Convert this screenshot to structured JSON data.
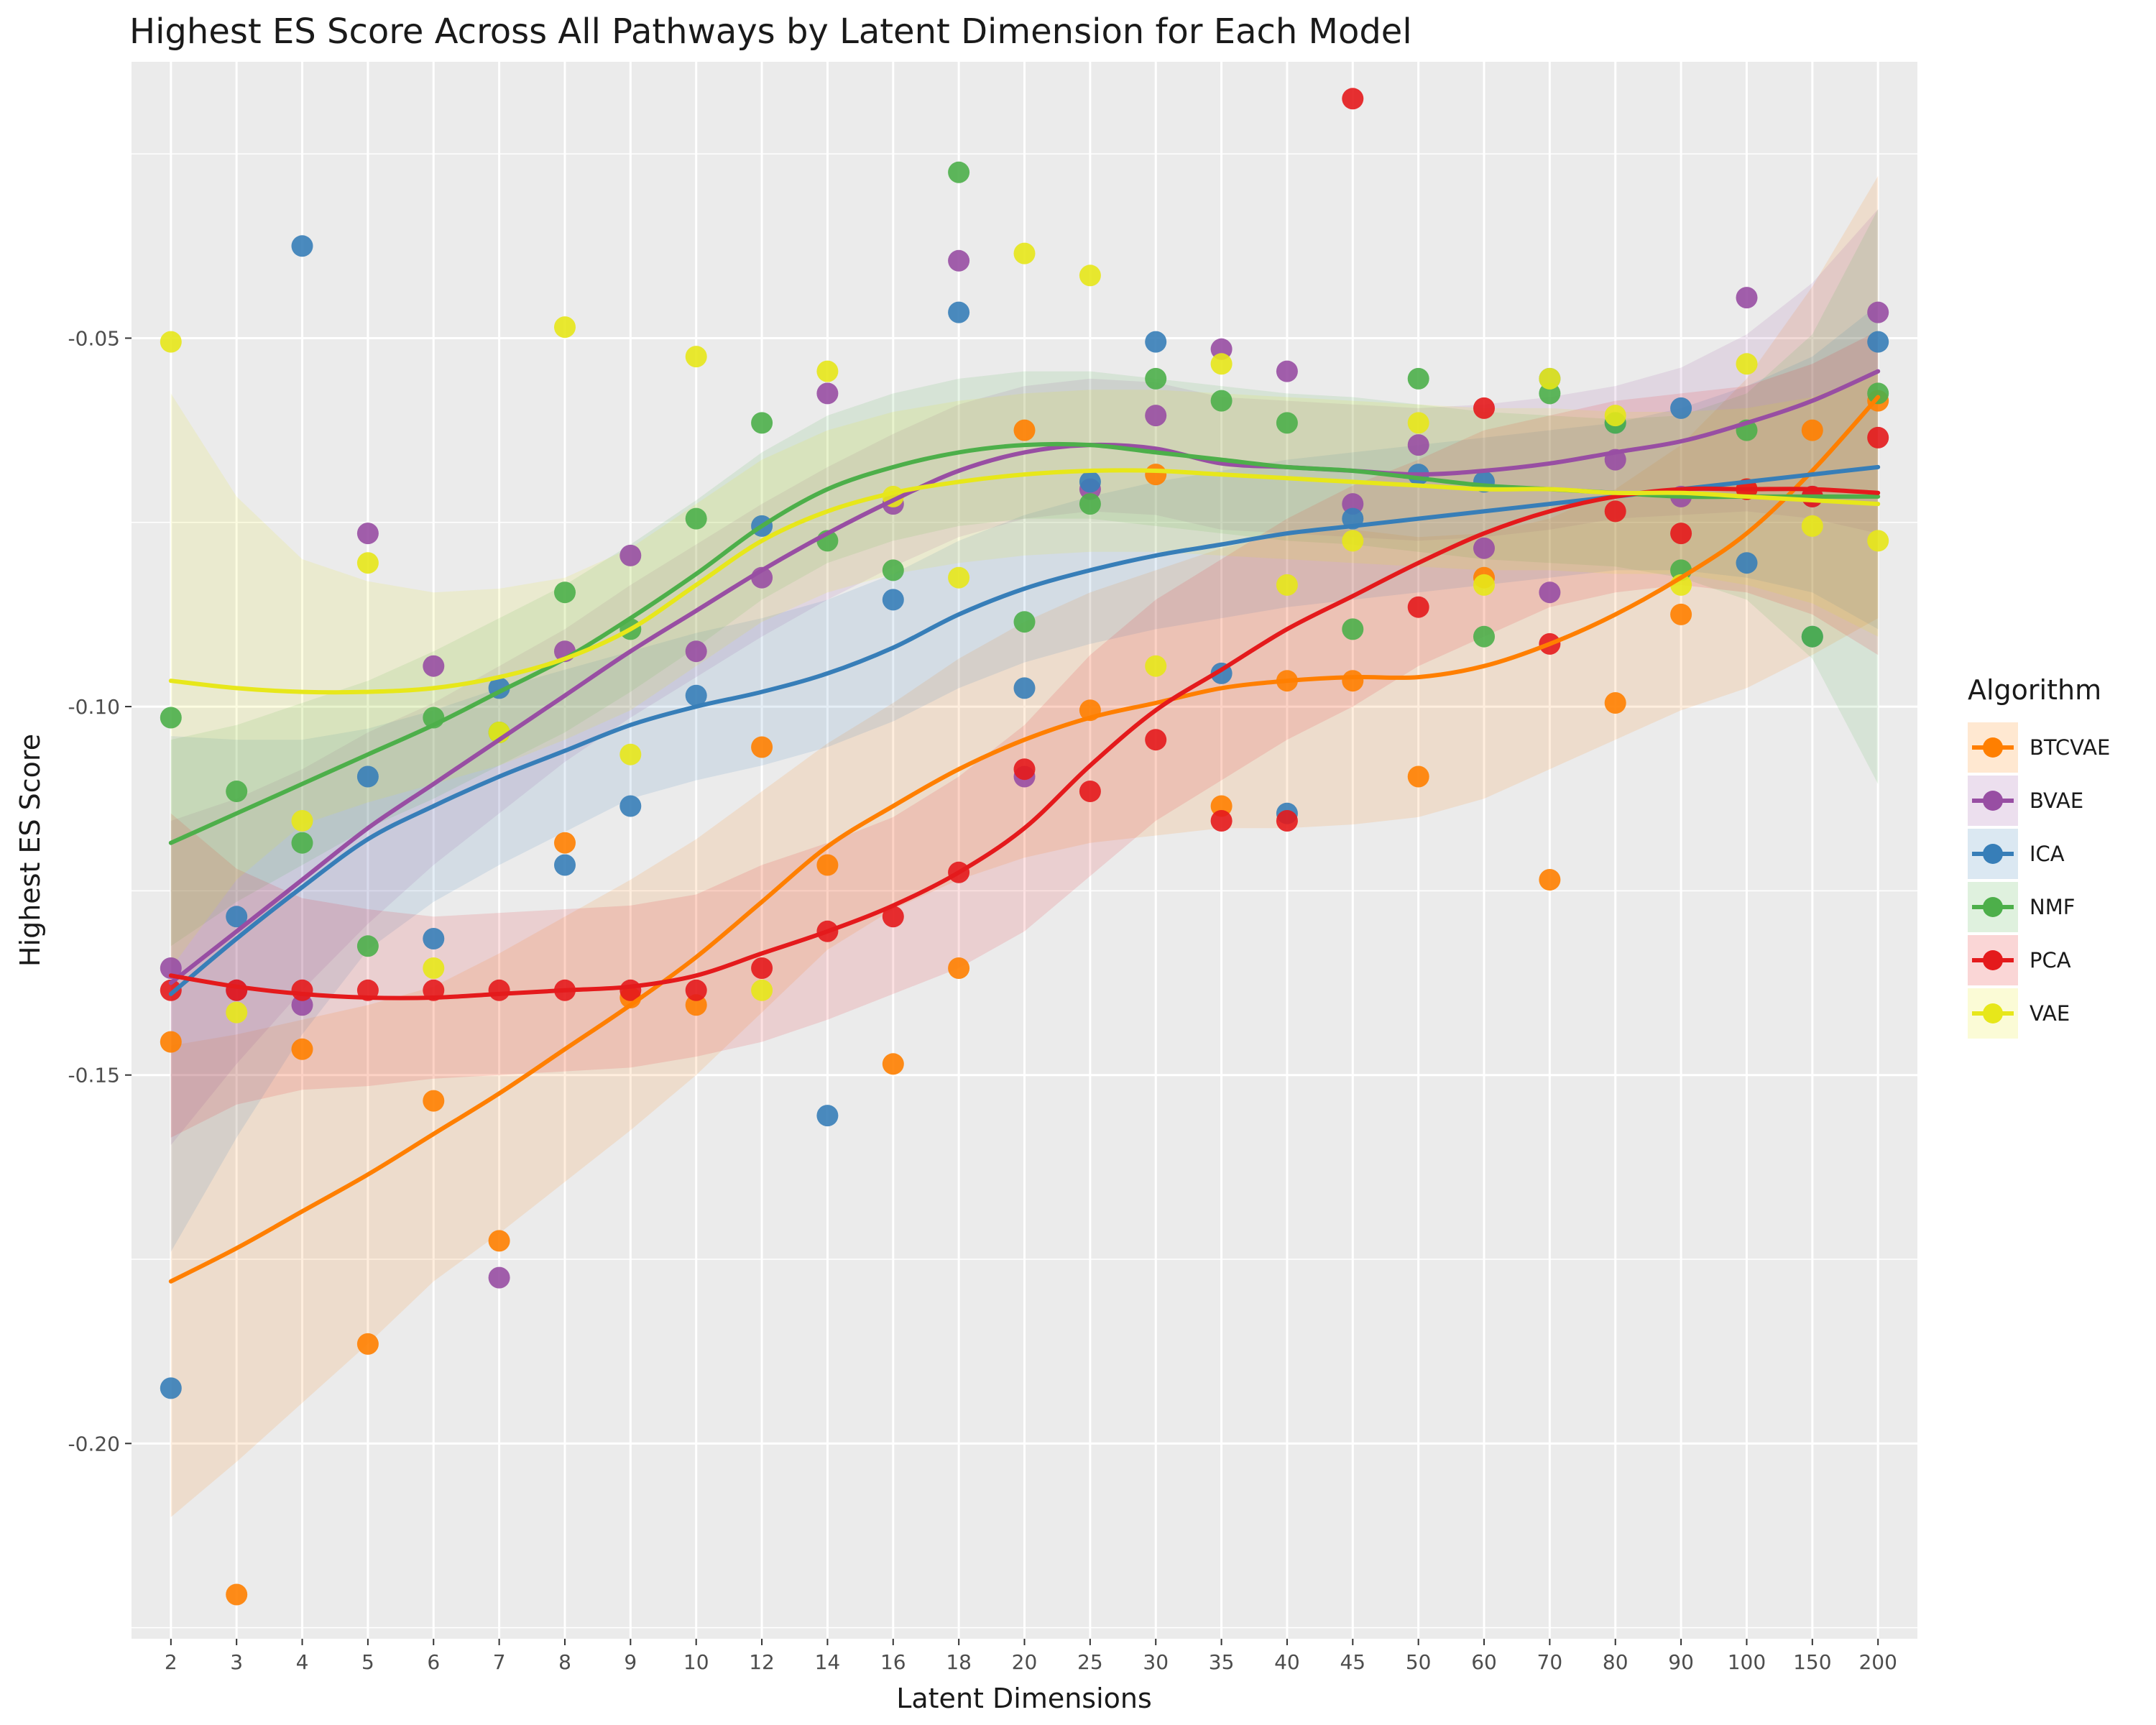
{
  "chart_data": {
    "type": "scatter",
    "title": "Highest ES Score Across All Pathways by Latent Dimension for Each Model",
    "xlabel": "Latent Dimensions",
    "ylabel": "Highest ES Score",
    "categories": [
      "2",
      "3",
      "4",
      "5",
      "6",
      "7",
      "8",
      "9",
      "10",
      "12",
      "14",
      "16",
      "18",
      "20",
      "25",
      "30",
      "35",
      "40",
      "45",
      "50",
      "60",
      "70",
      "80",
      "90",
      "100",
      "150",
      "200"
    ],
    "y_ticks": [
      -0.2,
      -0.15,
      -0.1,
      -0.05
    ],
    "y_tick_labels": [
      "-0.20",
      "-0.15",
      "-0.10",
      "-0.05"
    ],
    "ylim": [
      -0.2265,
      -0.0125
    ],
    "grid": true,
    "legend": {
      "title": "Algorithm",
      "position": "right"
    },
    "series": [
      {
        "name": "BTCVAE",
        "color": "#ff7f00",
        "points": [
          [
            0,
            -0.1455
          ],
          [
            1,
            -0.2205
          ],
          [
            2,
            -0.1465
          ],
          [
            3,
            -0.1865
          ],
          [
            4,
            -0.1535
          ],
          [
            5,
            -0.1725
          ],
          [
            6,
            -0.1185
          ],
          [
            7,
            -0.1395
          ],
          [
            8,
            -0.1405
          ],
          [
            9,
            -0.1055
          ],
          [
            10,
            -0.1215
          ],
          [
            11,
            -0.1485
          ],
          [
            12,
            -0.1355
          ],
          [
            13,
            -0.0625
          ],
          [
            14,
            -0.1005
          ],
          [
            15,
            -0.0685
          ],
          [
            16,
            -0.1135
          ],
          [
            17,
            -0.0965
          ],
          [
            18,
            -0.0965
          ],
          [
            19,
            -0.1095
          ],
          [
            20,
            -0.0825
          ],
          [
            21,
            -0.1235
          ],
          [
            22,
            -0.0995
          ],
          [
            23,
            -0.0875
          ],
          [
            24,
            -0.0705
          ],
          [
            25,
            -0.0625
          ],
          [
            26,
            -0.0585
          ]
        ],
        "trend": [
          -0.178,
          -0.1735,
          -0.1685,
          -0.1635,
          -0.158,
          -0.1525,
          -0.1465,
          -0.1405,
          -0.134,
          -0.1265,
          -0.119,
          -0.1135,
          -0.1085,
          -0.1045,
          -0.1015,
          -0.0995,
          -0.0975,
          -0.0965,
          -0.096,
          -0.096,
          -0.0945,
          -0.0915,
          -0.0875,
          -0.0825,
          -0.0765,
          -0.068,
          -0.058
        ],
        "band": [
          0.032,
          0.029,
          0.026,
          0.023,
          0.02,
          0.019,
          0.018,
          0.017,
          0.016,
          0.015,
          0.014,
          0.014,
          0.015,
          0.016,
          0.017,
          0.018,
          0.019,
          0.02,
          0.02,
          0.019,
          0.018,
          0.017,
          0.017,
          0.018,
          0.021,
          0.025,
          0.03
        ]
      },
      {
        "name": "BVAE",
        "color": "#984ea3",
        "points": [
          [
            0,
            -0.1355
          ],
          [
            1,
            -0.1385
          ],
          [
            2,
            -0.1405
          ],
          [
            3,
            -0.0765
          ],
          [
            4,
            -0.0945
          ],
          [
            5,
            -0.1775
          ],
          [
            6,
            -0.0925
          ],
          [
            7,
            -0.0795
          ],
          [
            8,
            -0.0925
          ],
          [
            9,
            -0.0825
          ],
          [
            10,
            -0.0575
          ],
          [
            11,
            -0.0725
          ],
          [
            12,
            -0.0395
          ],
          [
            13,
            -0.1095
          ],
          [
            14,
            -0.0705
          ],
          [
            15,
            -0.0605
          ],
          [
            16,
            -0.0515
          ],
          [
            17,
            -0.0545
          ],
          [
            18,
            -0.0725
          ],
          [
            19,
            -0.0645
          ],
          [
            20,
            -0.0785
          ],
          [
            21,
            -0.0845
          ],
          [
            22,
            -0.0665
          ],
          [
            23,
            -0.0715
          ],
          [
            24,
            -0.0445
          ],
          [
            25,
            -0.0715
          ],
          [
            26,
            -0.0465
          ]
        ],
        "trend": [
          -0.1375,
          -0.1305,
          -0.1235,
          -0.1165,
          -0.1105,
          -0.1045,
          -0.0985,
          -0.0925,
          -0.087,
          -0.0815,
          -0.0765,
          -0.072,
          -0.068,
          -0.0655,
          -0.0645,
          -0.065,
          -0.067,
          -0.0675,
          -0.068,
          -0.0685,
          -0.068,
          -0.067,
          -0.0655,
          -0.064,
          -0.0615,
          -0.0585,
          -0.0545
        ],
        "band": [
          0.022,
          0.018,
          0.015,
          0.013,
          0.011,
          0.01,
          0.009,
          0.009,
          0.009,
          0.009,
          0.009,
          0.009,
          0.009,
          0.009,
          0.009,
          0.009,
          0.009,
          0.009,
          0.009,
          0.009,
          0.009,
          0.009,
          0.009,
          0.01,
          0.012,
          0.016,
          0.022
        ]
      },
      {
        "name": "ICA",
        "color": "#377eb8",
        "points": [
          [
            0,
            -0.1925
          ],
          [
            1,
            -0.1285
          ],
          [
            2,
            -0.0375
          ],
          [
            3,
            -0.1095
          ],
          [
            4,
            -0.1315
          ],
          [
            5,
            -0.0975
          ],
          [
            6,
            -0.1215
          ],
          [
            7,
            -0.1135
          ],
          [
            8,
            -0.0985
          ],
          [
            9,
            -0.0755
          ],
          [
            10,
            -0.1555
          ],
          [
            11,
            -0.0855
          ],
          [
            12,
            -0.0465
          ],
          [
            13,
            -0.0975
          ],
          [
            14,
            -0.0695
          ],
          [
            15,
            -0.0505
          ],
          [
            16,
            -0.0955
          ],
          [
            17,
            -0.1145
          ],
          [
            18,
            -0.0745
          ],
          [
            19,
            -0.0685
          ],
          [
            20,
            -0.0695
          ],
          [
            21,
            -0.0555
          ],
          [
            22,
            -0.0615
          ],
          [
            23,
            -0.0595
          ],
          [
            24,
            -0.0805
          ],
          [
            25,
            -0.0905
          ],
          [
            26,
            -0.0505
          ]
        ],
        "trend": [
          -0.139,
          -0.1315,
          -0.1245,
          -0.118,
          -0.1135,
          -0.1095,
          -0.106,
          -0.1025,
          -0.1,
          -0.098,
          -0.0955,
          -0.092,
          -0.0875,
          -0.084,
          -0.0815,
          -0.0795,
          -0.078,
          -0.0765,
          -0.0755,
          -0.0745,
          -0.0735,
          -0.0725,
          -0.0715,
          -0.0705,
          -0.0695,
          -0.0685,
          -0.0675
        ],
        "band": [
          0.035,
          0.027,
          0.02,
          0.015,
          0.013,
          0.012,
          0.011,
          0.01,
          0.01,
          0.01,
          0.01,
          0.01,
          0.01,
          0.01,
          0.01,
          0.01,
          0.01,
          0.01,
          0.01,
          0.01,
          0.01,
          0.01,
          0.01,
          0.011,
          0.013,
          0.016,
          0.022
        ]
      },
      {
        "name": "NMF",
        "color": "#4daf4a",
        "points": [
          [
            0,
            -0.1015
          ],
          [
            1,
            -0.1115
          ],
          [
            2,
            -0.1185
          ],
          [
            3,
            -0.1325
          ],
          [
            4,
            -0.1015
          ],
          [
            5,
            -0.1035
          ],
          [
            6,
            -0.0845
          ],
          [
            7,
            -0.0895
          ],
          [
            8,
            -0.0745
          ],
          [
            9,
            -0.0615
          ],
          [
            10,
            -0.0775
          ],
          [
            11,
            -0.0815
          ],
          [
            12,
            -0.0275
          ],
          [
            13,
            -0.0885
          ],
          [
            14,
            -0.0725
          ],
          [
            15,
            -0.0555
          ],
          [
            16,
            -0.0585
          ],
          [
            17,
            -0.0615
          ],
          [
            18,
            -0.0895
          ],
          [
            19,
            -0.0555
          ],
          [
            20,
            -0.0905
          ],
          [
            21,
            -0.0575
          ],
          [
            22,
            -0.0615
          ],
          [
            23,
            -0.0815
          ],
          [
            24,
            -0.0625
          ],
          [
            25,
            -0.0905
          ],
          [
            26,
            -0.0575
          ]
        ],
        "trend": [
          -0.1185,
          -0.1145,
          -0.1105,
          -0.1065,
          -0.1025,
          -0.098,
          -0.0935,
          -0.088,
          -0.082,
          -0.0755,
          -0.0705,
          -0.0675,
          -0.0655,
          -0.0645,
          -0.0645,
          -0.0655,
          -0.0665,
          -0.0675,
          -0.068,
          -0.069,
          -0.07,
          -0.0705,
          -0.071,
          -0.0715,
          -0.0715,
          -0.0715,
          -0.0715
        ],
        "band": [
          0.014,
          0.012,
          0.011,
          0.01,
          0.01,
          0.01,
          0.01,
          0.01,
          0.01,
          0.01,
          0.01,
          0.01,
          0.01,
          0.01,
          0.01,
          0.01,
          0.01,
          0.01,
          0.01,
          0.01,
          0.01,
          0.01,
          0.01,
          0.011,
          0.014,
          0.022,
          0.039
        ]
      },
      {
        "name": "PCA",
        "color": "#e41a1c",
        "points": [
          [
            0,
            -0.1385
          ],
          [
            1,
            -0.1385
          ],
          [
            2,
            -0.1385
          ],
          [
            3,
            -0.1385
          ],
          [
            4,
            -0.1385
          ],
          [
            5,
            -0.1385
          ],
          [
            6,
            -0.1385
          ],
          [
            7,
            -0.1385
          ],
          [
            8,
            -0.1385
          ],
          [
            9,
            -0.1355
          ],
          [
            10,
            -0.1305
          ],
          [
            11,
            -0.1285
          ],
          [
            12,
            -0.1225
          ],
          [
            13,
            -0.1085
          ],
          [
            14,
            -0.1115
          ],
          [
            15,
            -0.1045
          ],
          [
            16,
            -0.1155
          ],
          [
            17,
            -0.1155
          ],
          [
            18,
            -0.0175
          ],
          [
            19,
            -0.0865
          ],
          [
            20,
            -0.0595
          ],
          [
            21,
            -0.0915
          ],
          [
            22,
            -0.0735
          ],
          [
            23,
            -0.0765
          ],
          [
            24,
            -0.0705
          ],
          [
            25,
            -0.0715
          ],
          [
            26,
            -0.0635
          ]
        ],
        "trend": [
          -0.1365,
          -0.138,
          -0.139,
          -0.1395,
          -0.1395,
          -0.139,
          -0.1385,
          -0.138,
          -0.1365,
          -0.1335,
          -0.1305,
          -0.127,
          -0.1225,
          -0.1165,
          -0.108,
          -0.1005,
          -0.095,
          -0.0895,
          -0.085,
          -0.0805,
          -0.0765,
          -0.0735,
          -0.0715,
          -0.0705,
          -0.0705,
          -0.0705,
          -0.071
        ],
        "band": [
          0.022,
          0.016,
          0.013,
          0.012,
          0.011,
          0.011,
          0.011,
          0.011,
          0.011,
          0.012,
          0.012,
          0.012,
          0.013,
          0.014,
          0.015,
          0.015,
          0.015,
          0.015,
          0.015,
          0.014,
          0.014,
          0.013,
          0.013,
          0.013,
          0.014,
          0.017,
          0.022
        ]
      },
      {
        "name": "VAE",
        "color": "#e7e71a",
        "points": [
          [
            0,
            -0.0505
          ],
          [
            1,
            -0.1415
          ],
          [
            2,
            -0.1155
          ],
          [
            3,
            -0.0805
          ],
          [
            4,
            -0.1355
          ],
          [
            5,
            -0.1035
          ],
          [
            6,
            -0.0485
          ],
          [
            7,
            -0.1065
          ],
          [
            8,
            -0.0525
          ],
          [
            9,
            -0.1385
          ],
          [
            10,
            -0.0545
          ],
          [
            11,
            -0.0715
          ],
          [
            12,
            -0.0825
          ],
          [
            13,
            -0.0385
          ],
          [
            14,
            -0.0415
          ],
          [
            15,
            -0.0945
          ],
          [
            16,
            -0.0535
          ],
          [
            17,
            -0.0835
          ],
          [
            18,
            -0.0775
          ],
          [
            19,
            -0.0615
          ],
          [
            20,
            -0.0835
          ],
          [
            21,
            -0.0555
          ],
          [
            22,
            -0.0605
          ],
          [
            23,
            -0.0835
          ],
          [
            24,
            -0.0535
          ],
          [
            25,
            -0.0755
          ],
          [
            26,
            -0.0775
          ]
        ],
        "trend": [
          -0.0965,
          -0.0975,
          -0.098,
          -0.098,
          -0.0975,
          -0.096,
          -0.0935,
          -0.0895,
          -0.0835,
          -0.0775,
          -0.0735,
          -0.071,
          -0.0695,
          -0.0685,
          -0.068,
          -0.068,
          -0.0685,
          -0.069,
          -0.0695,
          -0.07,
          -0.0705,
          -0.0705,
          -0.071,
          -0.071,
          -0.0715,
          -0.072,
          -0.0725
        ],
        "band": [
          0.039,
          0.026,
          0.018,
          0.015,
          0.013,
          0.012,
          0.011,
          0.011,
          0.011,
          0.011,
          0.011,
          0.011,
          0.011,
          0.011,
          0.011,
          0.011,
          0.011,
          0.011,
          0.011,
          0.011,
          0.011,
          0.011,
          0.011,
          0.011,
          0.012,
          0.014,
          0.018
        ]
      }
    ]
  }
}
